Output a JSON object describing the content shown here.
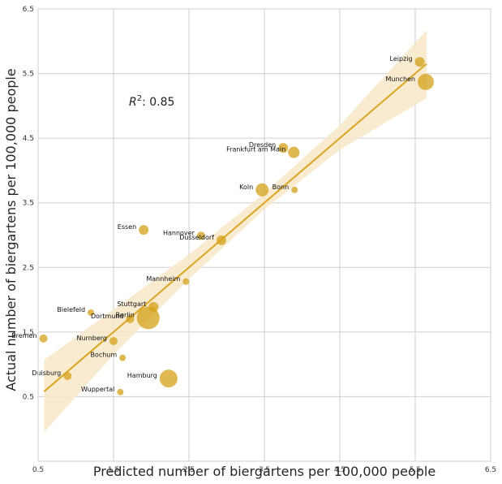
{
  "chart_data": {
    "type": "scatter",
    "title": "",
    "xlabel": "Predicted number of biergartens per 100,000 people",
    "ylabel": "Actual number of biergartens per 100,000 people",
    "xlim": [
      0.5,
      6.5
    ],
    "ylim": [
      -0.5,
      6.5
    ],
    "xticks": [
      "0.5",
      "1.5",
      "2.5",
      "3.5",
      "4.5",
      "5.5",
      "6.5"
    ],
    "yticks": [
      "0.5",
      "1.5",
      "2.5",
      "3.5",
      "4.5",
      "5.5",
      "6.5"
    ],
    "grid": true,
    "annotation": {
      "math": "R",
      "sup": "2",
      "text": ": 0.85",
      "x": 1.75,
      "y": 5.0
    },
    "colors": {
      "points": "#d4a017",
      "fit_line": "#daa520",
      "ci_band": "#f7e8c8",
      "grid": "#cfcfcf"
    },
    "fit_line": {
      "x": [
        0.58,
        5.65
      ],
      "y": [
        0.58,
        5.65
      ]
    },
    "ci_band": {
      "x": [
        0.58,
        1.5,
        2.5,
        3.5,
        4.5,
        5.65
      ],
      "lower": [
        -0.05,
        1.15,
        2.32,
        3.4,
        4.32,
        5.12
      ],
      "upper": [
        1.07,
        1.85,
        2.7,
        3.65,
        4.7,
        6.17
      ]
    },
    "points": [
      {
        "name": "Leipzig",
        "x": 5.56,
        "y": 5.68,
        "size": 6
      },
      {
        "name": "Munchen",
        "x": 5.64,
        "y": 5.37,
        "size": 10
      },
      {
        "name": "Dresden",
        "x": 3.75,
        "y": 4.35,
        "size": 6
      },
      {
        "name": "Frankfurt am Main",
        "x": 3.89,
        "y": 4.28,
        "size": 7
      },
      {
        "name": "Koln",
        "x": 3.47,
        "y": 3.7,
        "size": 8
      },
      {
        "name": "Bonn",
        "x": 3.9,
        "y": 3.7,
        "size": 4
      },
      {
        "name": "Essen",
        "x": 1.9,
        "y": 3.08,
        "size": 6
      },
      {
        "name": "Hannover",
        "x": 2.66,
        "y": 2.99,
        "size": 5
      },
      {
        "name": "Dusseldorf",
        "x": 2.93,
        "y": 2.92,
        "size": 6
      },
      {
        "name": "Mannheim",
        "x": 2.46,
        "y": 2.28,
        "size": 4
      },
      {
        "name": "Stuttgart",
        "x": 2.03,
        "y": 1.89,
        "size": 6
      },
      {
        "name": "Berlin",
        "x": 1.96,
        "y": 1.72,
        "size": 14
      },
      {
        "name": "Dortmund",
        "x": 1.72,
        "y": 1.7,
        "size": 5
      },
      {
        "name": "Bielefeld",
        "x": 1.2,
        "y": 1.8,
        "size": 4
      },
      {
        "name": "Bremen",
        "x": 0.57,
        "y": 1.4,
        "size": 5
      },
      {
        "name": "Nurnberg",
        "x": 1.5,
        "y": 1.36,
        "size": 5
      },
      {
        "name": "Bochum",
        "x": 1.62,
        "y": 1.1,
        "size": 4
      },
      {
        "name": "Duisburg",
        "x": 0.89,
        "y": 0.82,
        "size": 5
      },
      {
        "name": "Hamburg",
        "x": 2.23,
        "y": 0.78,
        "size": 11
      },
      {
        "name": "Wuppertal",
        "x": 1.59,
        "y": 0.57,
        "size": 4
      }
    ]
  }
}
